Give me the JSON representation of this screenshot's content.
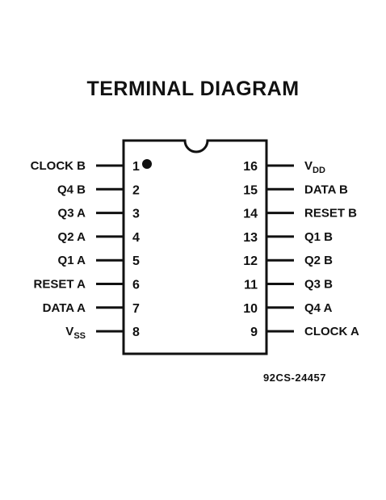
{
  "title": "TERMINAL DIAGRAM",
  "figure_id": "92CS-24457",
  "left_pins": [
    {
      "number": "1",
      "label": "CLOCK B"
    },
    {
      "number": "2",
      "label": "Q4 B"
    },
    {
      "number": "3",
      "label": "Q3 A"
    },
    {
      "number": "4",
      "label": "Q2 A"
    },
    {
      "number": "5",
      "label": "Q1 A"
    },
    {
      "number": "6",
      "label": "RESET A"
    },
    {
      "number": "7",
      "label": "DATA A"
    },
    {
      "number": "8",
      "label": "V",
      "label_sub": "SS"
    }
  ],
  "right_pins": [
    {
      "number": "16",
      "label": "V",
      "label_sub": "DD"
    },
    {
      "number": "15",
      "label": "DATA B"
    },
    {
      "number": "14",
      "label": "RESET B"
    },
    {
      "number": "13",
      "label": "Q1 B"
    },
    {
      "number": "12",
      "label": "Q2 B"
    },
    {
      "number": "11",
      "label": "Q3 B"
    },
    {
      "number": "10",
      "label": "Q4 A"
    },
    {
      "number": "9",
      "label": "CLOCK A"
    }
  ]
}
